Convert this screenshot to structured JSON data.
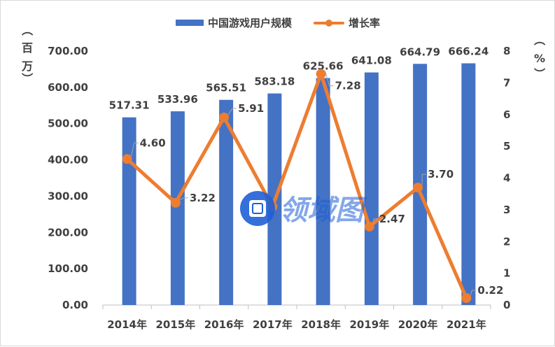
{
  "chart_data": {
    "type": "bar+line",
    "categories": [
      "2014年",
      "2015年",
      "2016年",
      "2017年",
      "2018年",
      "2019年",
      "2020年",
      "2021年"
    ],
    "series": [
      {
        "name": "中国游戏用户规模",
        "type": "bar",
        "axis": "left",
        "values": [
          517.31,
          533.96,
          565.51,
          583.18,
          625.66,
          641.08,
          664.79,
          666.24
        ],
        "labels": [
          "517.31",
          "533.96",
          "565.51",
          "583.18",
          "625.66",
          "641.08",
          "664.79",
          "666.24"
        ],
        "color": "#4472c4"
      },
      {
        "name": "增长率",
        "type": "line",
        "axis": "right",
        "values": [
          4.6,
          3.22,
          5.91,
          3.1,
          7.28,
          2.47,
          3.7,
          0.22
        ],
        "labels": [
          "4.60",
          "3.22",
          "5.91",
          "",
          "7.28",
          "2.47",
          "3.70",
          "0.22"
        ],
        "color": "#ed7d31"
      }
    ],
    "y_left": {
      "ylim": [
        0,
        700
      ],
      "ticks": [
        "0.00",
        "100.00",
        "200.00",
        "300.00",
        "400.00",
        "500.00",
        "600.00",
        "700.00"
      ],
      "unit_label": "（百万）"
    },
    "y_right": {
      "ylim": [
        0,
        8
      ],
      "ticks": [
        "0",
        "1",
        "2",
        "3",
        "4",
        "5",
        "6",
        "7",
        "8"
      ],
      "unit_label": "（%）"
    },
    "legend_position": "top-center",
    "grid": false
  },
  "watermark": {
    "text": "领域图",
    "color": "#1e5fd6"
  }
}
